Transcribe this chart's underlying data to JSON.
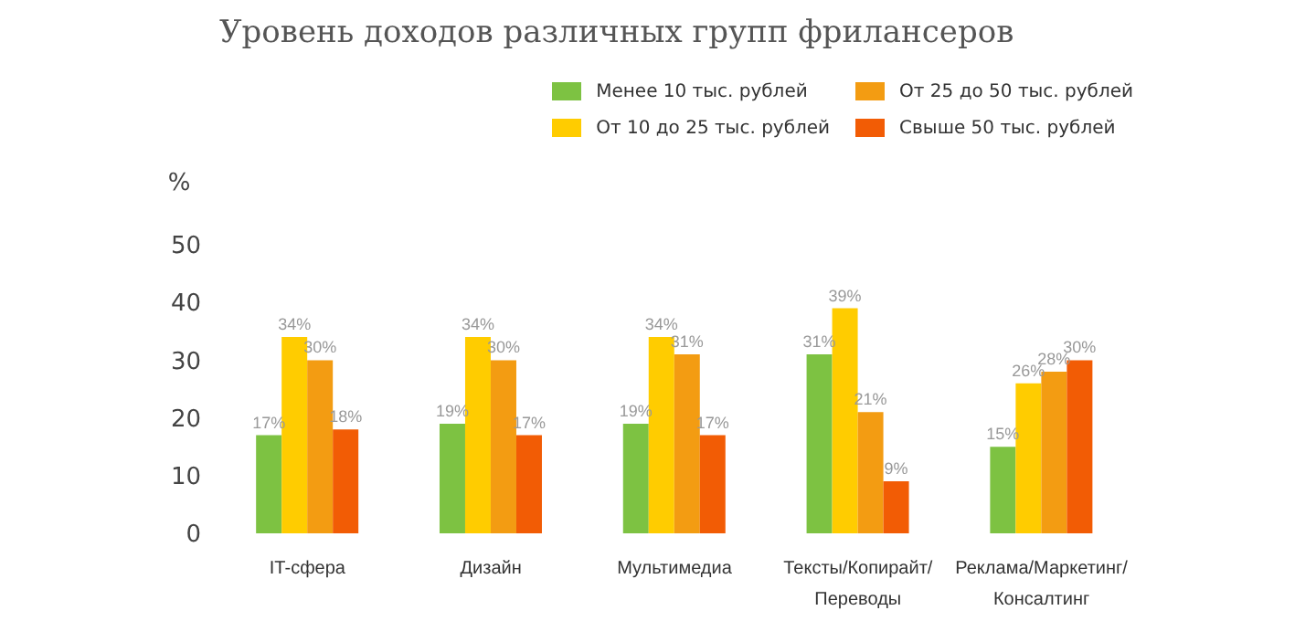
{
  "chart_data": {
    "type": "bar",
    "title": "Уровень доходов различных групп фрилансеров",
    "ylabel": "%",
    "categories": [
      "IT-сфера",
      "Дизайн",
      "Мультимедиа",
      "Тексты/Копирайт/Переводы",
      "Реклама/Маркетинг/Консалтинг"
    ],
    "series": [
      {
        "name": "Менее 10 тыс. рублей",
        "color": "#7dc242",
        "values": [
          17,
          19,
          19,
          31,
          15
        ],
        "value_labels": [
          "17%",
          "19%",
          "19%",
          "31%",
          "15%"
        ]
      },
      {
        "name": "От 10 до 25 тыс. рублей",
        "color": "#ffcc00",
        "values": [
          34,
          34,
          34,
          39,
          26
        ],
        "value_labels": [
          "34%",
          "34%",
          "34%",
          "39%",
          "26%"
        ]
      },
      {
        "name": "От 25 до 50 тыс. рублей",
        "color": "#f39c12",
        "values": [
          30,
          30,
          31,
          21,
          28
        ],
        "value_labels": [
          "30%",
          "30%",
          "31%",
          "21%",
          "28%"
        ]
      },
      {
        "name": "Свыше 50 тыс. рублей",
        "color": "#f25c05",
        "values": [
          18,
          17,
          17,
          9,
          30
        ],
        "value_labels": [
          "18%",
          "17%",
          "17%",
          "9%",
          "30%"
        ]
      }
    ],
    "ylim": [
      0,
      50
    ],
    "yticks": [
      0,
      10,
      20,
      30,
      40,
      50
    ],
    "grid": false,
    "legend": "top right"
  }
}
